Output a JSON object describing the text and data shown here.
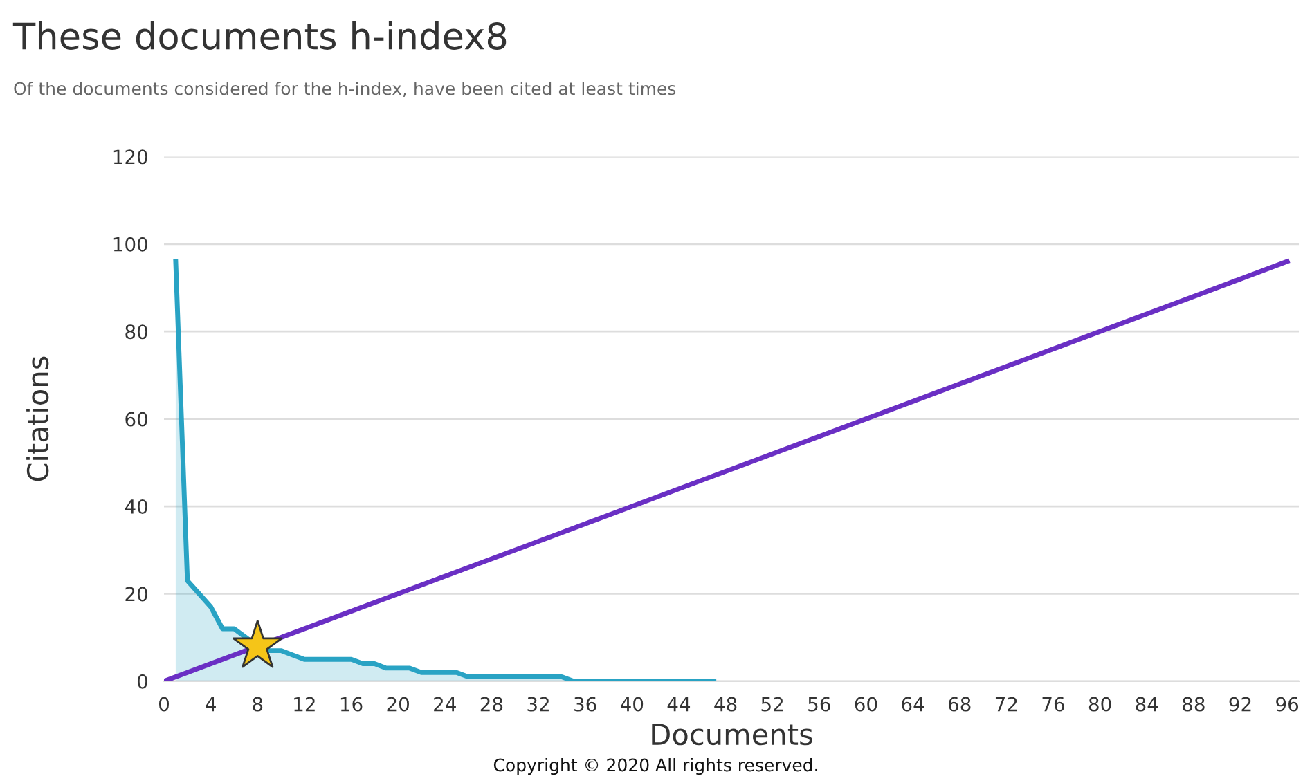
{
  "chart_data": {
    "type": "area",
    "title": "These documents h-index8",
    "subtitle": "Of the documents considered for the h-index, have been cited at least times",
    "xlabel": "Documents",
    "ylabel": "Citations",
    "series": [
      {
        "color": "#29a3c4",
        "x": [
          1,
          2,
          3,
          4,
          5,
          6,
          7,
          8,
          9,
          10,
          11,
          12,
          13,
          14,
          15,
          16,
          17,
          18,
          19,
          20,
          21,
          22,
          23,
          24,
          25,
          26,
          27,
          28,
          29,
          30,
          31,
          32,
          33,
          34,
          35,
          36,
          37,
          38,
          39,
          40,
          41,
          42,
          43,
          44,
          45,
          46,
          47
        ],
        "values": [
          96,
          23,
          20,
          17,
          12,
          12,
          10,
          8,
          7,
          7,
          6,
          5,
          5,
          5,
          5,
          5,
          4,
          4,
          3,
          3,
          3,
          2,
          2,
          2,
          2,
          1,
          1,
          1,
          1,
          1,
          1,
          1,
          1,
          1,
          0,
          0,
          0,
          0,
          0,
          0,
          0,
          0,
          0,
          0,
          0,
          0,
          0
        ]
      },
      {
        "type": "line",
        "color": "#6a2fc4",
        "x": [
          0,
          96
        ],
        "values": [
          0,
          96
        ]
      },
      {
        "type": "scatter",
        "color": "#f5c518",
        "marker": "star",
        "x": [
          8
        ],
        "values": [
          8
        ]
      }
    ],
    "xlim": [
      0,
      97
    ],
    "xticks": [
      0,
      4,
      8,
      12,
      16,
      20,
      24,
      28,
      32,
      36,
      40,
      44,
      48,
      52,
      56,
      60,
      64,
      68,
      72,
      76,
      80,
      84,
      88,
      92,
      96
    ],
    "ylim": [
      0,
      120
    ],
    "yticks": [
      0,
      20,
      40,
      60,
      80,
      100,
      120
    ],
    "grid": "y",
    "legend": false,
    "annotations": [
      "Copyright © 2020 All rights reserved."
    ]
  }
}
